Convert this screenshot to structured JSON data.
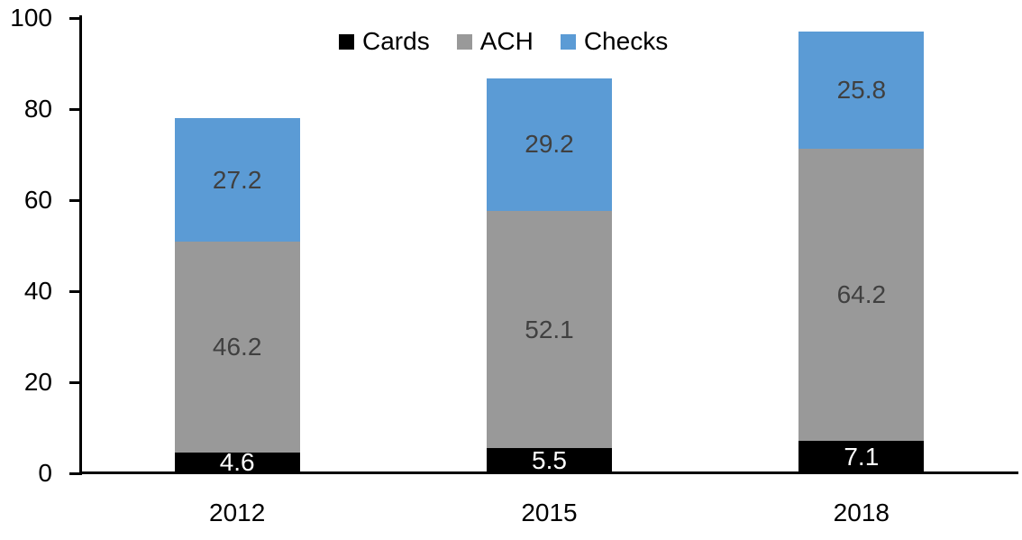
{
  "chart_data": {
    "type": "bar",
    "stacked": true,
    "title": "",
    "xlabel": "",
    "ylabel": "",
    "categories": [
      "2012",
      "2015",
      "2018"
    ],
    "series": [
      {
        "name": "Cards",
        "color": "#000000",
        "label_color": "#ffffff",
        "values": [
          4.6,
          5.5,
          7.1
        ]
      },
      {
        "name": "ACH",
        "color": "#999999",
        "label_color": "#404040",
        "values": [
          46.2,
          52.1,
          64.2
        ]
      },
      {
        "name": "Checks",
        "color": "#5b9bd5",
        "label_color": "#404040",
        "values": [
          27.2,
          29.2,
          25.8
        ]
      }
    ],
    "ylim": [
      0,
      100
    ],
    "yticks": [
      0,
      20,
      40,
      60,
      80,
      100
    ],
    "grid": false,
    "legend_position": "top-center",
    "axis_color": "#000000"
  }
}
